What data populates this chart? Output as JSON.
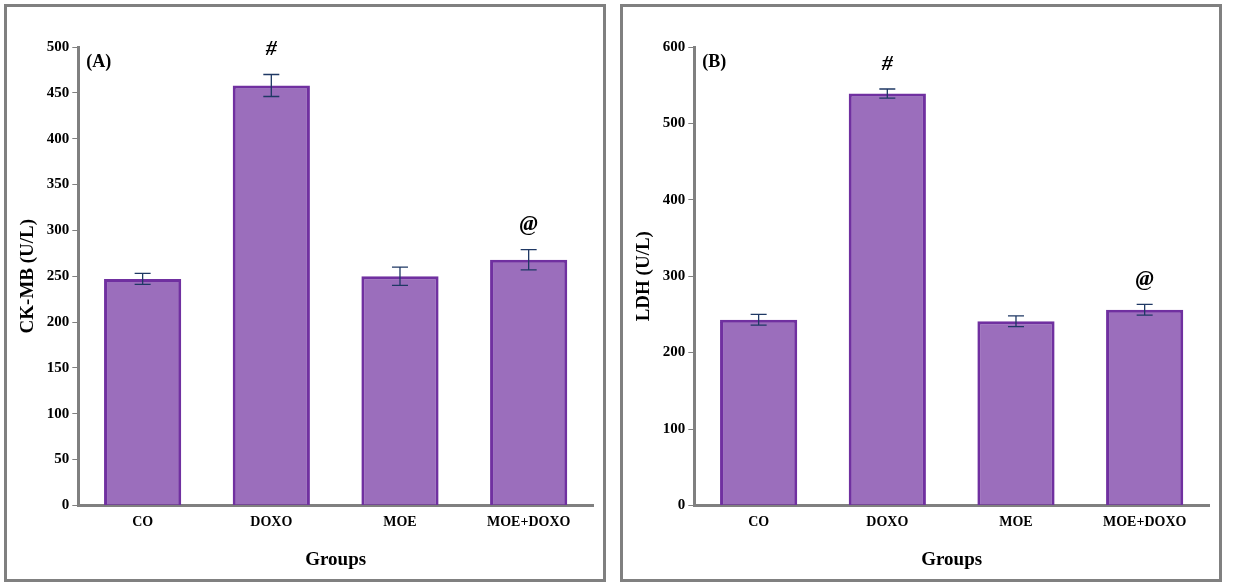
{
  "chart_data": [
    {
      "type": "bar",
      "title": "(A)",
      "xlabel": "Groups",
      "ylabel": "CK-MB (U/L)",
      "categories": [
        "CO",
        "DOXO",
        "MOE",
        "MOE+DOXO"
      ],
      "values": [
        247,
        458,
        250,
        268
      ],
      "errors": [
        6,
        12,
        10,
        11
      ],
      "color": "#7030a0",
      "ylim": [
        0,
        500
      ],
      "yticks": [
        0,
        50,
        100,
        150,
        200,
        250,
        300,
        350,
        400,
        450,
        500
      ],
      "grid": false,
      "legend": false,
      "annotations": [
        {
          "text": "#",
          "x": "DOXO",
          "y": 470
        },
        {
          "text": "@",
          "x": "MOE+DOXO",
          "y": 279
        }
      ]
    },
    {
      "type": "bar",
      "title": "(B)",
      "xlabel": "Groups",
      "ylabel": "LDH (U/L)",
      "categories": [
        "CO",
        "DOXO",
        "MOE",
        "MOE+DOXO"
      ],
      "values": [
        243,
        539,
        241,
        256
      ],
      "errors": [
        7,
        6,
        7,
        7
      ],
      "color": "#7030a0",
      "ylim": [
        0,
        600
      ],
      "yticks": [
        0,
        100,
        200,
        300,
        400,
        500,
        600
      ],
      "grid": false,
      "legend": false,
      "annotations": [
        {
          "text": "#",
          "x": "DOXO",
          "y": 545
        },
        {
          "text": "@",
          "x": "MOE+DOXO",
          "y": 263
        }
      ]
    }
  ]
}
